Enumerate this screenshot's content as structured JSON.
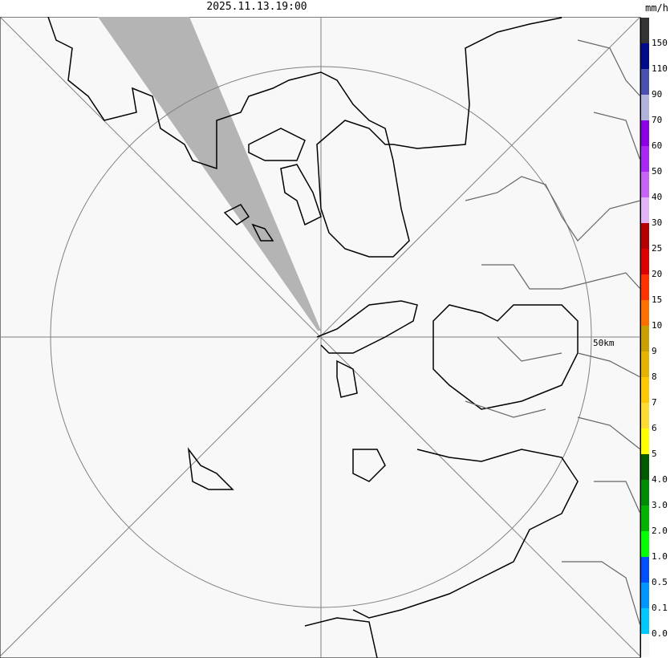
{
  "title": "2025.11.13.19:00",
  "unit": "mm/h",
  "range_ring_label": "50km",
  "legend": {
    "colors": [
      "#333333",
      "#000a8c",
      "#4a50b0",
      "#b0b4dc",
      "#8c00e6",
      "#aa28f5",
      "#c864f5",
      "#e0b4f5",
      "#b40000",
      "#dc0000",
      "#ff3200",
      "#ff6e00",
      "#c8a000",
      "#e6b400",
      "#ffc800",
      "#ffdc32",
      "#ffff00",
      "#005a00",
      "#008c00",
      "#00b400",
      "#00ff00",
      "#0050ff",
      "#0096ff",
      "#00c8ff",
      "#f8f8f8"
    ],
    "labels": [
      "150",
      "110",
      "90",
      "70",
      "60",
      "50",
      "40",
      "30",
      "25",
      "20",
      "15",
      "10",
      "9",
      "8",
      "7",
      "6",
      "5",
      "4.0",
      "3.0",
      "2.0",
      "1.0",
      "0.5",
      "0.1",
      "0.0"
    ]
  },
  "colors": {
    "background": "#f8f8f8",
    "echo": "#b4b4b4",
    "coast": "#000000",
    "border": "#666666",
    "grid": "#808080"
  }
}
